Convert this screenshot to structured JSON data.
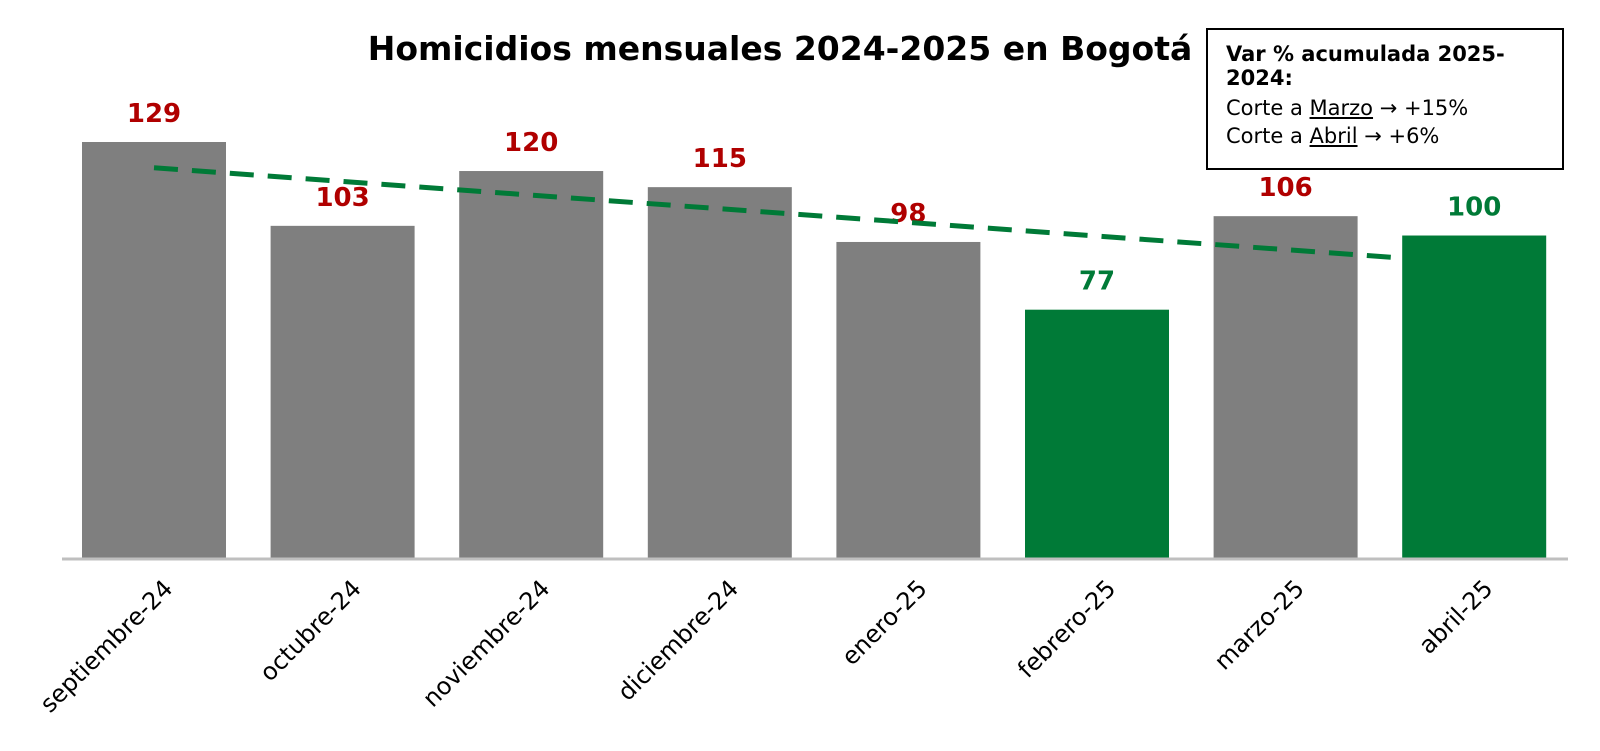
{
  "chart_data": {
    "type": "bar",
    "title": "Homicidios mensuales 2024-2025 en Bogotá",
    "categories": [
      "septiembre-24",
      "octubre-24",
      "noviembre-24",
      "diciembre-24",
      "enero-25",
      "febrero-25",
      "marzo-25",
      "abril-25"
    ],
    "values": [
      129,
      103,
      120,
      115,
      98,
      77,
      106,
      100
    ],
    "bar_colors": [
      "#7f7f7f",
      "#7f7f7f",
      "#7f7f7f",
      "#7f7f7f",
      "#7f7f7f",
      "#007a37",
      "#7f7f7f",
      "#007a37"
    ],
    "label_colors": [
      "#b00000",
      "#b00000",
      "#b00000",
      "#b00000",
      "#b00000",
      "#007a37",
      "#b00000",
      "#007a37"
    ],
    "trendline": {
      "style": "dashed",
      "color": "#007a37",
      "from": 121,
      "to": 93
    },
    "ylim": [
      0,
      140
    ],
    "grid": false
  },
  "note": {
    "heading": "Var % acumulada 2025-2024:",
    "line1_prefix": "Corte a ",
    "line1_month": "Marzo",
    "line1_suffix": " → +15%",
    "line2_prefix": "Corte a ",
    "line2_month": "Abril",
    "line2_suffix": " → +6%"
  }
}
